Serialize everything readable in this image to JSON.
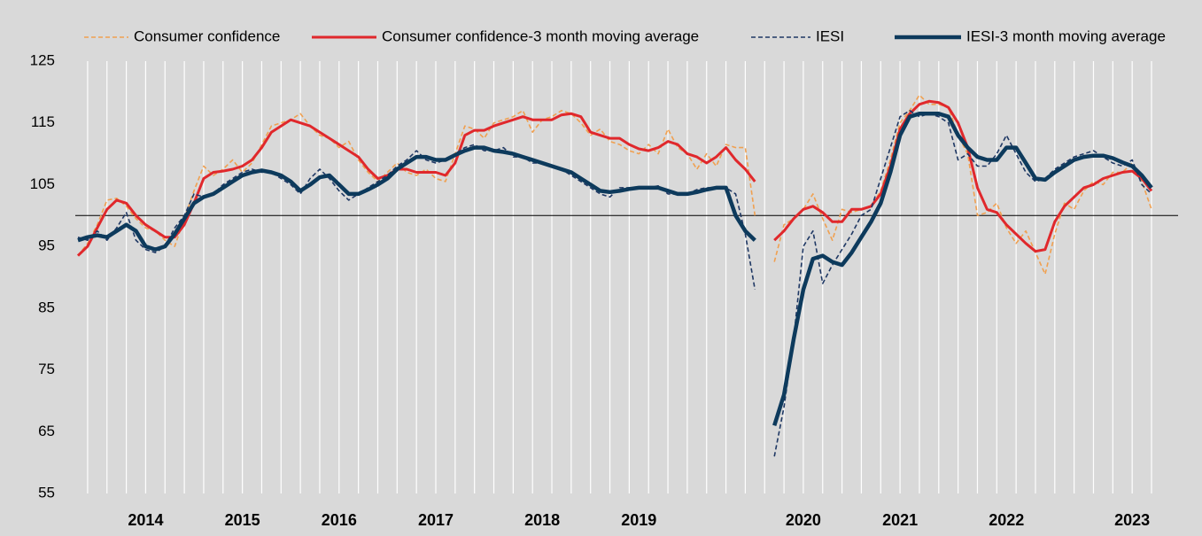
{
  "chart_data": {
    "type": "line",
    "categories": [
      null,
      null,
      null,
      null,
      null,
      null,
      null,
      "2014",
      null,
      null,
      null,
      null,
      null,
      null,
      null,
      null,
      null,
      "2015",
      null,
      null,
      null,
      null,
      null,
      null,
      null,
      null,
      null,
      "2016",
      null,
      null,
      null,
      null,
      null,
      null,
      null,
      null,
      null,
      "2017",
      null,
      null,
      null,
      null,
      null,
      null,
      null,
      null,
      null,
      null,
      "2018",
      null,
      null,
      null,
      null,
      null,
      null,
      null,
      null,
      null,
      "2019",
      null,
      null,
      null,
      null,
      null,
      null,
      null,
      null,
      null,
      null,
      null,
      null,
      null,
      null,
      null,
      null,
      "2020",
      null,
      null,
      null,
      null,
      null,
      null,
      null,
      null,
      null,
      "2021",
      null,
      null,
      null,
      null,
      null,
      null,
      null,
      null,
      null,
      null,
      "2022",
      null,
      null,
      null,
      null,
      null,
      null,
      null,
      null,
      null,
      null,
      null,
      null,
      "2023",
      null,
      null
    ],
    "series": [
      {
        "name": "Consumer confidence",
        "color": "#f0a050",
        "style": "dashed",
        "width": 1.6,
        "values": [
          93.5,
          95.5,
          98.5,
          102.5,
          102.8,
          101.5,
          99.5,
          98,
          97.5,
          96,
          95,
          99.5,
          104,
          108,
          106.5,
          107.5,
          109,
          107,
          108.5,
          111.5,
          114.5,
          115,
          115.5,
          116.5,
          114.5,
          113,
          112.5,
          111,
          112,
          109,
          107,
          105.5,
          107,
          108.5,
          107,
          106.5,
          107.5,
          106,
          105.5,
          110,
          114.5,
          114,
          112.5,
          115,
          115.5,
          116,
          117,
          113.5,
          115.5,
          116,
          117,
          116.5,
          115,
          113,
          114,
          112,
          111.5,
          110.5,
          110,
          111.5,
          110,
          114,
          111,
          110,
          107.5,
          110,
          108,
          111.5,
          111,
          111,
          100,
          null,
          92.5,
          98.5,
          99.5,
          101,
          103.5,
          99.5,
          96,
          101,
          100.5,
          101,
          101.5,
          104,
          109,
          115,
          117,
          119.5,
          118,
          118,
          117.5,
          113,
          110,
          100,
          100.5,
          102,
          98,
          95.5,
          97.5,
          94,
          90.5,
          97,
          102,
          101,
          104,
          105.5,
          105,
          107,
          107,
          108.5,
          105.5,
          101
        ]
      },
      {
        "name": "Consumer confidence-3 month moving average",
        "color": "#e0282c",
        "style": "solid",
        "width": 3,
        "values": [
          93.5,
          95,
          98,
          101,
          102.5,
          102,
          100,
          98.5,
          97.5,
          96.5,
          96.5,
          98.5,
          102,
          106,
          107,
          107.2,
          107.5,
          108,
          109,
          111,
          113.5,
          114.5,
          115.5,
          115,
          114.5,
          113.5,
          112.5,
          111.5,
          110.5,
          109.5,
          107.5,
          106,
          106.5,
          107.5,
          107.5,
          107,
          107,
          107,
          106.5,
          108.5,
          113,
          113.8,
          113.8,
          114.5,
          115,
          115.5,
          116,
          115.5,
          115.5,
          115.5,
          116.3,
          116.5,
          116,
          113.5,
          113,
          112.5,
          112.5,
          111.5,
          110.8,
          110.5,
          111,
          112,
          111.5,
          110,
          109.5,
          108.5,
          109.5,
          111,
          109,
          107.5,
          105.5,
          null,
          96,
          97.5,
          99.5,
          101,
          101.5,
          100.5,
          99,
          99,
          101,
          101,
          101.5,
          103.5,
          108,
          114,
          116.5,
          118,
          118.5,
          118.3,
          117.5,
          115,
          111,
          104.5,
          101,
          100.5,
          98.5,
          97,
          95.5,
          94.2,
          94.5,
          99,
          101.5,
          103,
          104.5,
          105,
          106,
          106.5,
          107,
          107.2,
          106,
          104
        ]
      },
      {
        "name": "IESI",
        "color": "#1f3864",
        "style": "dashed",
        "width": 1.6,
        "values": [
          96.5,
          96,
          97.5,
          96,
          98,
          100.5,
          96,
          94.5,
          94,
          95,
          98,
          100,
          103.5,
          103,
          103.5,
          105,
          106,
          107,
          107.5,
          107,
          107,
          106,
          105,
          103.5,
          106,
          107.5,
          106,
          104,
          102.5,
          103.5,
          104.5,
          105.5,
          106.5,
          108,
          109,
          110.5,
          109,
          108.5,
          109,
          110,
          111,
          111.5,
          110.5,
          110.5,
          111,
          109.5,
          109.5,
          108.5,
          108.5,
          108,
          107.5,
          106.5,
          105.5,
          104.5,
          103.5,
          103,
          104.5,
          104.5,
          104.5,
          104.5,
          104.8,
          103.5,
          103.5,
          103.5,
          104.2,
          104.5,
          104.5,
          104.5,
          103.5,
          97,
          88,
          null,
          61,
          69,
          80,
          95,
          97.5,
          89,
          92,
          94.5,
          97,
          100,
          101,
          106,
          111,
          116,
          117,
          116,
          116.5,
          116,
          115,
          109,
          110,
          108,
          108,
          110,
          113,
          110,
          107,
          105.5,
          106,
          107.5,
          108.5,
          109.5,
          110,
          110.5,
          109.5,
          108.5,
          108,
          109,
          105,
          103.5
        ]
      },
      {
        "name": "IESI-3 month moving average",
        "color": "#0d3a5c",
        "style": "solid",
        "width": 4.5,
        "values": [
          96,
          96.5,
          96.8,
          96.5,
          97.5,
          98.5,
          97.5,
          95,
          94.5,
          95,
          97,
          99.5,
          102,
          103,
          103.5,
          104.5,
          105.5,
          106.5,
          107,
          107.3,
          107,
          106.5,
          105.5,
          104,
          105,
          106.2,
          106.5,
          105,
          103.5,
          103.5,
          104.2,
          105,
          106,
          107.5,
          108.5,
          109.5,
          109.5,
          109,
          109,
          109.8,
          110.5,
          111,
          111,
          110.5,
          110.3,
          110,
          109.5,
          109,
          108.5,
          108,
          107.5,
          107,
          106,
          105,
          104,
          103.8,
          104,
          104.3,
          104.5,
          104.5,
          104.5,
          104,
          103.5,
          103.5,
          103.8,
          104.2,
          104.5,
          104.5,
          100,
          97.5,
          96,
          null,
          66,
          71,
          80,
          88,
          93,
          93.5,
          92.5,
          92,
          94,
          96.5,
          99,
          102,
          107,
          113,
          116,
          116.5,
          116.5,
          116.5,
          116,
          113,
          111,
          109.5,
          109,
          109,
          111,
          111,
          108.5,
          106,
          105.8,
          107,
          108,
          109,
          109.5,
          109.7,
          109.7,
          109.3,
          108.6,
          108,
          106.5,
          104.5
        ]
      }
    ],
    "ylim": [
      55,
      125
    ],
    "yticks": [
      55,
      65,
      75,
      85,
      95,
      105,
      115,
      125
    ],
    "reference_line": 100,
    "xgrid": true,
    "legend": "top"
  }
}
